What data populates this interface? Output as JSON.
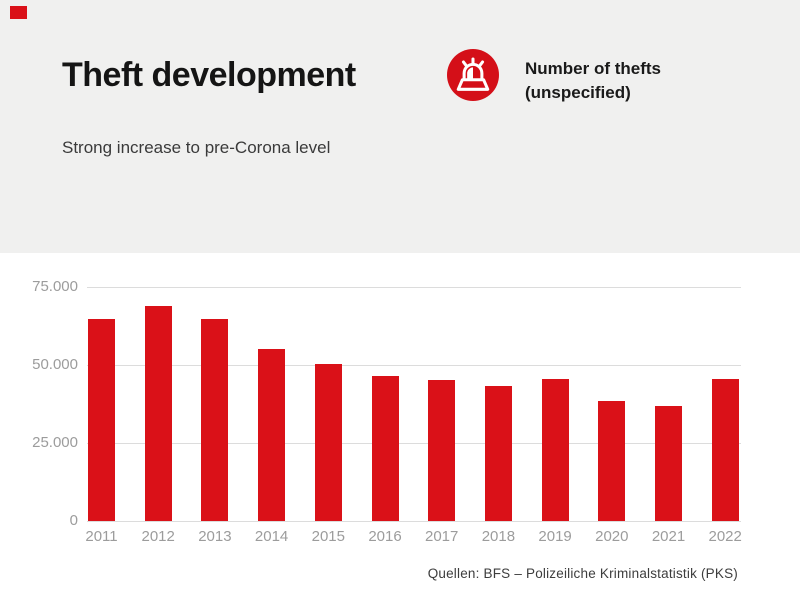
{
  "header": {
    "title": "Theft development",
    "subtitle": "Strong increase to pre-Corona level",
    "legend": {
      "icon": "siren-icon",
      "line1": "Number of thefts",
      "line2": "(unspecified)"
    }
  },
  "footer": {
    "source": "Quellen: BFS – Polizeiliche Kriminalstatistik (PKS)"
  },
  "colors": {
    "accent_red": "#da1118",
    "header_background": "#f0f0ef",
    "gridline": "#dcdcdc",
    "axis_label": "#9c9c9c",
    "title_text": "#151515"
  },
  "chart_data": {
    "type": "bar",
    "title": "Theft development",
    "categories": [
      "2011",
      "2012",
      "2013",
      "2014",
      "2015",
      "2016",
      "2017",
      "2018",
      "2019",
      "2020",
      "2021",
      "2022"
    ],
    "values": [
      64700,
      68900,
      64700,
      55100,
      50400,
      46600,
      45200,
      43400,
      45400,
      38400,
      36700,
      45500
    ],
    "xlabel": "",
    "ylabel": "",
    "ylim": [
      0,
      75000
    ],
    "yticks": [
      {
        "value": 0,
        "label": "0"
      },
      {
        "value": 25000,
        "label": "25.000"
      },
      {
        "value": 50000,
        "label": "50.000"
      },
      {
        "value": 75000,
        "label": "75.000"
      }
    ],
    "bar_color": "#da1118",
    "grid": true,
    "legend_position": "none"
  }
}
